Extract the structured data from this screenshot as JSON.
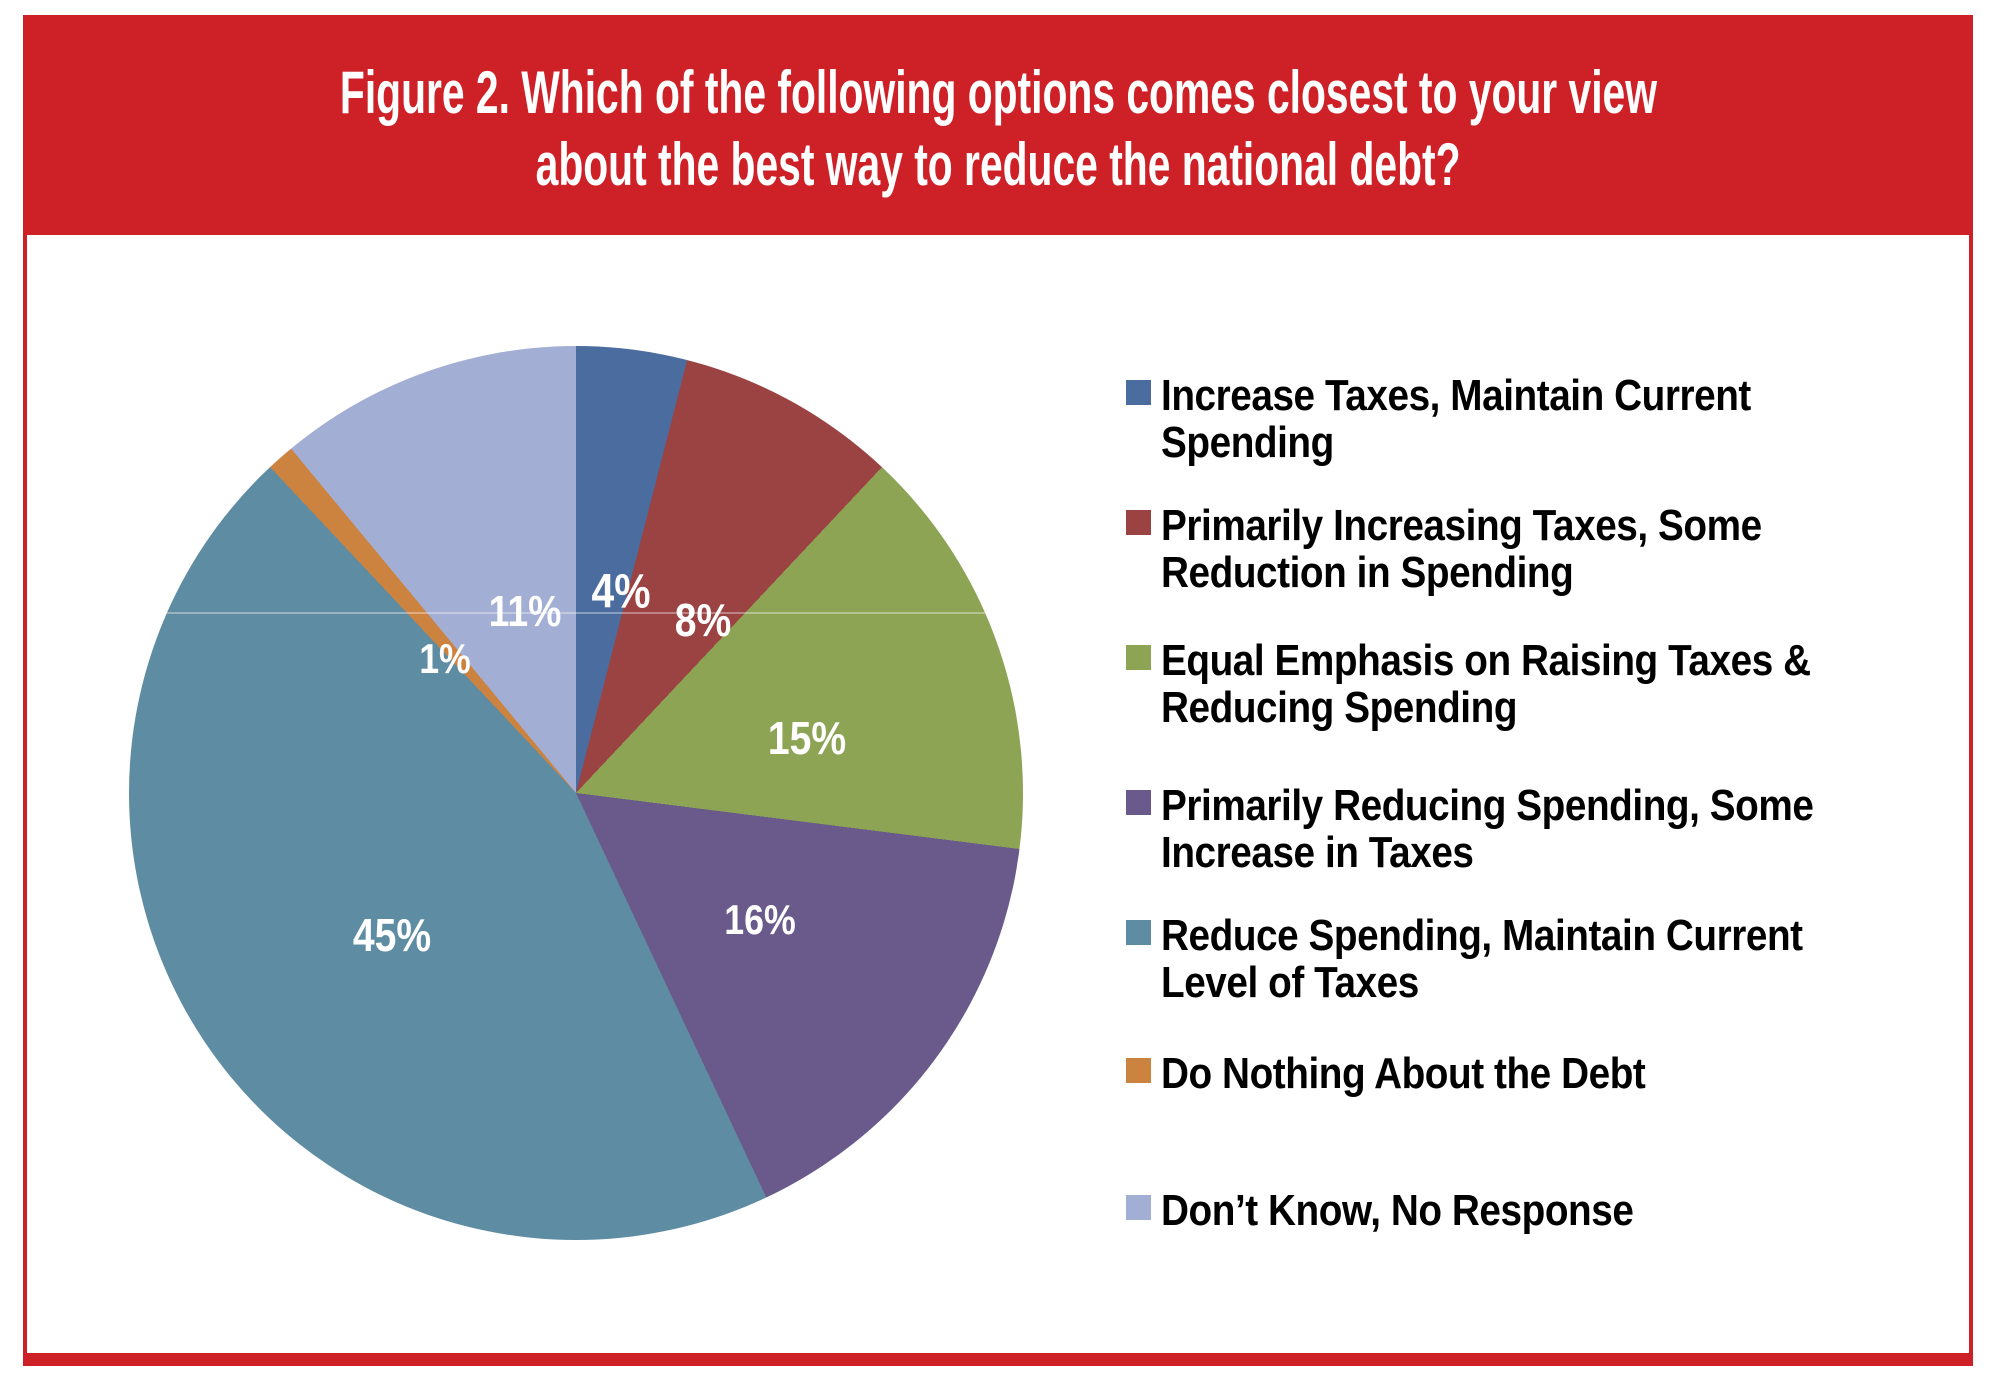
{
  "header": {
    "title_line1": "Figure 2. Which of the following options comes closest to your view",
    "title_line2": "about the best way to reduce the national debt?",
    "background_color": "#CE2127",
    "text_color": "#FFFFFF"
  },
  "chart_data": {
    "type": "pie",
    "title": "Figure 2. Which of the following options comes closest to your view about the best way to reduce the national debt?",
    "direction": "clockwise",
    "start_angle_deg": 0,
    "legend_position": "right",
    "data_labels": "percent",
    "label_color": "#FFFFFF",
    "legend_text_color": "#000000",
    "slices": [
      {
        "label": "Increase Taxes, Maintain Current\nSpending",
        "value": 4,
        "data_label": "4%",
        "color": "#4B6C9E"
      },
      {
        "label": "Primarily Increasing Taxes, Some\nReduction in Spending",
        "value": 8,
        "data_label": "8%",
        "color": "#9B4242"
      },
      {
        "label": "Equal Emphasis on Raising Taxes &\nReducing Spending",
        "value": 15,
        "data_label": "15%",
        "color": "#8DA455"
      },
      {
        "label": "Primarily Reducing Spending, Some\nIncrease in Taxes",
        "value": 16,
        "data_label": "16%",
        "color": "#695A8B"
      },
      {
        "label": "Reduce Spending, Maintain Current\nLevel of Taxes",
        "value": 45,
        "data_label": "45%",
        "color": "#5E8CA2"
      },
      {
        "label": "Do Nothing About the Debt",
        "value": 1,
        "data_label": "1%",
        "color": "#CC8340"
      },
      {
        "label": "Don’t Know, No Response",
        "value": 11,
        "data_label": "11%",
        "color": "#A2AED3"
      }
    ]
  }
}
